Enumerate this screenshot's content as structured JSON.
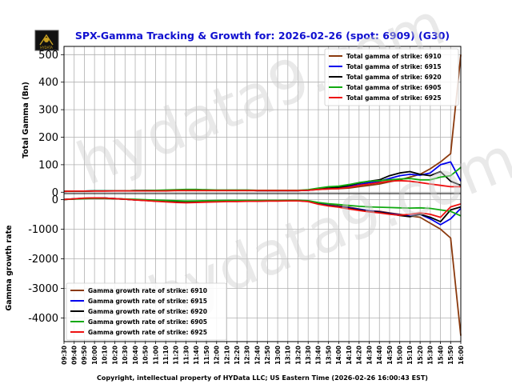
{
  "title": "SPX-Gamma Tracking & Growth for: 2026-02-26 (spot: 6909) (G30)",
  "footer": "Copyright, intellectual property of HYData LLC; US Eastern Time (2026-02-26 16:00:43 EST)",
  "watermark": "hydata9.com",
  "logo_text": "HYDATA",
  "colors": {
    "6910": "#8b3a0e",
    "6915": "#0000ee",
    "6920": "#000000",
    "6905": "#11aa11",
    "6925": "#ee1111",
    "title": "#1010d0"
  },
  "chart_data": [
    {
      "type": "line",
      "ylabel": "Total Gamma (Bn)",
      "ylim": [
        -5,
        530
      ],
      "yticks": [
        0,
        100,
        200,
        300,
        400,
        500
      ],
      "grid": true,
      "legend": "top-right",
      "x": [
        "09:30",
        "09:40",
        "09:50",
        "10:00",
        "10:10",
        "10:20",
        "10:30",
        "10:40",
        "10:50",
        "11:00",
        "11:10",
        "11:20",
        "11:30",
        "11:40",
        "11:50",
        "12:00",
        "12:10",
        "12:20",
        "12:30",
        "12:40",
        "12:50",
        "13:00",
        "13:10",
        "13:20",
        "13:30",
        "13:40",
        "13:50",
        "14:00",
        "14:10",
        "14:20",
        "14:30",
        "14:40",
        "14:50",
        "15:00",
        "15:10",
        "15:20",
        "15:30",
        "15:40",
        "15:50",
        "16:00"
      ],
      "series": [
        {
          "key": "6910",
          "name": "Total gamma of strike: 6910",
          "values": [
            3,
            4,
            4,
            5,
            5,
            5,
            5,
            6,
            6,
            7,
            7,
            8,
            8,
            8,
            8,
            7,
            7,
            7,
            7,
            6,
            6,
            6,
            6,
            6,
            7,
            10,
            12,
            13,
            15,
            20,
            25,
            30,
            38,
            45,
            55,
            65,
            85,
            110,
            140,
            500
          ]
        },
        {
          "key": "6915",
          "name": "Total gamma of strike: 6915",
          "values": [
            3,
            4,
            4,
            5,
            5,
            5,
            5,
            6,
            6,
            6,
            7,
            7,
            7,
            7,
            7,
            7,
            7,
            7,
            7,
            6,
            6,
            6,
            6,
            6,
            7,
            11,
            14,
            16,
            20,
            28,
            35,
            40,
            50,
            60,
            65,
            62,
            70,
            100,
            110,
            40
          ]
        },
        {
          "key": "6920",
          "name": "Total gamma of strike: 6920",
          "values": [
            3,
            4,
            4,
            5,
            5,
            5,
            5,
            5,
            6,
            6,
            6,
            7,
            7,
            7,
            7,
            7,
            7,
            7,
            7,
            6,
            6,
            6,
            6,
            6,
            8,
            12,
            15,
            18,
            25,
            33,
            40,
            45,
            60,
            70,
            75,
            65,
            60,
            75,
            40,
            25
          ]
        },
        {
          "key": "6905",
          "name": "Total gamma of strike: 6905",
          "values": [
            3,
            4,
            4,
            5,
            5,
            5,
            5,
            6,
            6,
            7,
            8,
            9,
            10,
            10,
            9,
            8,
            8,
            8,
            8,
            7,
            7,
            7,
            7,
            7,
            9,
            15,
            20,
            22,
            28,
            35,
            40,
            42,
            45,
            48,
            50,
            45,
            45,
            55,
            60,
            90
          ]
        },
        {
          "key": "6925",
          "name": "Total gamma of strike: 6925",
          "values": [
            3,
            4,
            4,
            4,
            4,
            5,
            5,
            5,
            5,
            5,
            5,
            6,
            6,
            6,
            6,
            6,
            6,
            6,
            6,
            6,
            6,
            6,
            6,
            6,
            7,
            10,
            12,
            13,
            18,
            25,
            30,
            35,
            40,
            42,
            40,
            35,
            30,
            25,
            20,
            20
          ]
        }
      ]
    },
    {
      "type": "line",
      "ylabel": "Gamma growth rate",
      "ylim": [
        -4800,
        200
      ],
      "yticks": [
        0,
        -1000,
        -2000,
        -3000,
        -4000
      ],
      "grid": true,
      "legend": "bottom-left",
      "x": [
        "09:30",
        "09:40",
        "09:50",
        "10:00",
        "10:10",
        "10:20",
        "10:30",
        "10:40",
        "10:50",
        "11:00",
        "11:10",
        "11:20",
        "11:30",
        "11:40",
        "11:50",
        "12:00",
        "12:10",
        "12:20",
        "12:30",
        "12:40",
        "12:50",
        "13:00",
        "13:10",
        "13:20",
        "13:30",
        "13:40",
        "13:50",
        "14:00",
        "14:10",
        "14:20",
        "14:30",
        "14:40",
        "14:50",
        "15:00",
        "15:10",
        "15:20",
        "15:30",
        "15:40",
        "15:50",
        "16:00"
      ],
      "series": [
        {
          "key": "6910",
          "name": "Gamma growth rate of strike: 6910",
          "values": [
            0,
            20,
            40,
            50,
            45,
            30,
            10,
            -10,
            -30,
            -50,
            -70,
            -90,
            -100,
            -90,
            -80,
            -70,
            -60,
            -60,
            -50,
            -50,
            -40,
            -40,
            -30,
            -30,
            -50,
            -120,
            -180,
            -220,
            -260,
            -320,
            -380,
            -400,
            -450,
            -500,
            -550,
            -600,
            -800,
            -1000,
            -1300,
            -4600
          ]
        },
        {
          "key": "6915",
          "name": "Gamma growth rate of strike: 6915",
          "values": [
            0,
            20,
            40,
            50,
            45,
            30,
            10,
            -10,
            -30,
            -50,
            -60,
            -70,
            -80,
            -80,
            -70,
            -60,
            -55,
            -55,
            -50,
            -50,
            -45,
            -45,
            -40,
            -40,
            -60,
            -140,
            -200,
            -240,
            -280,
            -330,
            -380,
            -420,
            -470,
            -520,
            -560,
            -500,
            -650,
            -850,
            -650,
            -300
          ]
        },
        {
          "key": "6920",
          "name": "Gamma growth rate of strike: 6920",
          "values": [
            0,
            20,
            40,
            50,
            45,
            30,
            10,
            -10,
            -30,
            -50,
            -60,
            -70,
            -80,
            -80,
            -70,
            -60,
            -55,
            -55,
            -50,
            -50,
            -45,
            -45,
            -40,
            -40,
            -60,
            -150,
            -210,
            -250,
            -300,
            -350,
            -400,
            -430,
            -480,
            -540,
            -580,
            -500,
            -600,
            -750,
            -350,
            -250
          ]
        },
        {
          "key": "6905",
          "name": "Gamma growth rate of strike: 6905",
          "values": [
            0,
            15,
            30,
            40,
            35,
            25,
            15,
            5,
            -5,
            -20,
            -30,
            -40,
            -50,
            -45,
            -40,
            -35,
            -30,
            -30,
            -30,
            -30,
            -30,
            -30,
            -30,
            -30,
            -40,
            -100,
            -140,
            -170,
            -200,
            -230,
            -250,
            -260,
            -270,
            -280,
            -290,
            -280,
            -300,
            -350,
            -400,
            -550
          ]
        },
        {
          "key": "6925",
          "name": "Gamma growth rate of strike: 6925",
          "values": [
            0,
            25,
            45,
            55,
            50,
            30,
            10,
            -15,
            -35,
            -60,
            -80,
            -100,
            -110,
            -100,
            -90,
            -80,
            -70,
            -70,
            -60,
            -60,
            -50,
            -50,
            -45,
            -45,
            -70,
            -160,
            -220,
            -260,
            -320,
            -370,
            -420,
            -450,
            -500,
            -530,
            -500,
            -450,
            -500,
            -600,
            -250,
            -150
          ]
        }
      ]
    }
  ]
}
